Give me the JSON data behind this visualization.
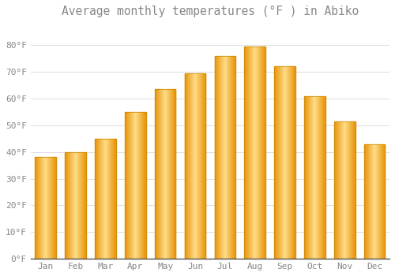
{
  "title": "Average monthly temperatures (°F ) in Abiko",
  "months": [
    "Jan",
    "Feb",
    "Mar",
    "Apr",
    "May",
    "Jun",
    "Jul",
    "Aug",
    "Sep",
    "Oct",
    "Nov",
    "Dec"
  ],
  "values": [
    38,
    40,
    45,
    55,
    63.5,
    69.5,
    76,
    79.5,
    72,
    61,
    51.5,
    43
  ],
  "bar_color_main": "#FDB827",
  "bar_color_light": "#FFDD88",
  "bar_color_dark": "#E8940A",
  "background_color": "#FFFFFF",
  "grid_color": "#DDDDDD",
  "ylim": [
    0,
    88
  ],
  "yticks": [
    0,
    10,
    20,
    30,
    40,
    50,
    60,
    70,
    80
  ],
  "ytick_labels": [
    "0°F",
    "10°F",
    "20°F",
    "30°F",
    "40°F",
    "50°F",
    "60°F",
    "70°F",
    "80°F"
  ],
  "title_fontsize": 10.5,
  "tick_fontsize": 8,
  "font_color": "#888888",
  "bar_width": 0.7,
  "bar_edge_color": "#CC8800",
  "bar_edge_linewidth": 0.5
}
